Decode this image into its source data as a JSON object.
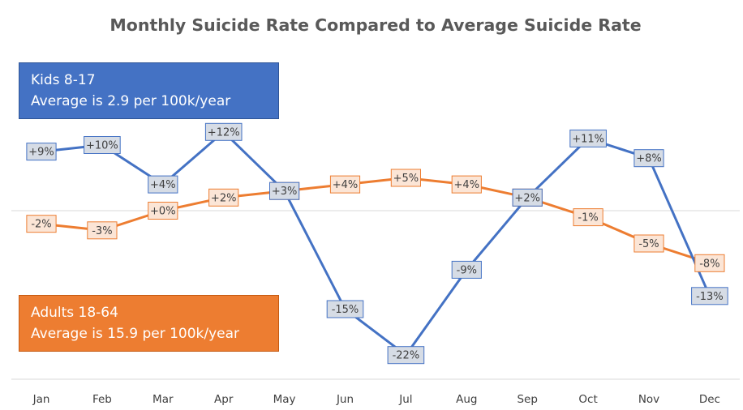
{
  "chart_data": {
    "type": "line",
    "title": "Monthly Suicide Rate Compared to Average Suicide Rate",
    "categories": [
      "Jan",
      "Feb",
      "Mar",
      "Apr",
      "May",
      "Jun",
      "Jul",
      "Aug",
      "Sep",
      "Oct",
      "Nov",
      "Dec"
    ],
    "ylim": [
      -25,
      15
    ],
    "series": [
      {
        "key": "kids",
        "name": "Kids 8-17",
        "note": "Average is 2.9 per 100k/year",
        "color": "#4472c4",
        "label_fill": "#d6dce5",
        "values": [
          9,
          10,
          4,
          12,
          3,
          -15,
          -22,
          -9,
          2,
          11,
          8,
          -13
        ],
        "labels": [
          "+9%",
          "+10%",
          "+4%",
          "+12%",
          "+3%",
          "-15%",
          "-22%",
          "-9%",
          "+2%",
          "+11%",
          "+8%",
          "-13%"
        ]
      },
      {
        "key": "adults",
        "name": "Adults 18-64",
        "note": "Average is 15.9 per 100k/year",
        "color": "#ed7d31",
        "label_fill": "#fbe5d6",
        "values": [
          -2,
          -3,
          0,
          2,
          3,
          4,
          5,
          4,
          2,
          -1,
          -5,
          -8
        ],
        "labels": [
          "-2%",
          "-3%",
          "+0%",
          "+2%",
          "+3%",
          "+4%",
          "+5%",
          "+4%",
          "+2%",
          "-1%",
          "-5%",
          "-8%"
        ]
      }
    ],
    "grid": false,
    "legend": "text-boxes"
  }
}
